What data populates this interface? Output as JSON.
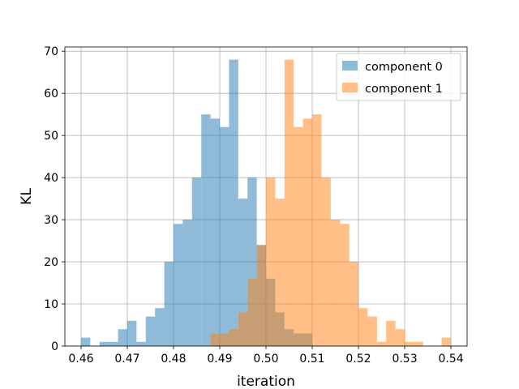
{
  "chart_data": {
    "type": "bar",
    "xlabel": "iteration",
    "ylabel": "KL",
    "xlim": [
      0.4565,
      0.5435
    ],
    "ylim": [
      0,
      71
    ],
    "grid": true,
    "legend": "top-right",
    "x_ticks": [
      "0.46",
      "0.47",
      "0.48",
      "0.49",
      "0.50",
      "0.51",
      "0.52",
      "0.53",
      "0.54"
    ],
    "y_ticks": [
      "0",
      "10",
      "20",
      "30",
      "40",
      "50",
      "60",
      "70"
    ],
    "series": [
      {
        "name": "component 0",
        "color": "#1f77b4",
        "bin_edges": [
          0.46,
          0.462,
          0.464,
          0.466,
          0.468,
          0.47,
          0.472,
          0.474,
          0.476,
          0.478,
          0.48,
          0.482,
          0.484,
          0.486,
          0.488,
          0.49,
          0.492,
          0.494,
          0.496,
          0.498,
          0.5,
          0.502,
          0.504,
          0.506,
          0.508,
          0.51,
          0.512
        ],
        "counts": [
          2,
          0,
          1,
          1,
          4,
          6,
          1,
          7,
          9,
          20,
          29,
          30,
          40,
          55,
          54,
          52,
          68,
          35,
          40,
          24,
          16,
          8,
          4,
          3,
          3,
          0
        ]
      },
      {
        "name": "component 1",
        "color": "#ff7f0e",
        "bin_edges": [
          0.488,
          0.49,
          0.492,
          0.494,
          0.496,
          0.498,
          0.5,
          0.502,
          0.504,
          0.506,
          0.508,
          0.51,
          0.512,
          0.514,
          0.516,
          0.518,
          0.52,
          0.522,
          0.524,
          0.526,
          0.528,
          0.53,
          0.532,
          0.534,
          0.536,
          0.538,
          0.54
        ],
        "counts": [
          3,
          3,
          4,
          8,
          16,
          24,
          40,
          35,
          68,
          52,
          54,
          55,
          40,
          30,
          29,
          20,
          9,
          7,
          1,
          6,
          4,
          1,
          1,
          0,
          0,
          2
        ]
      }
    ]
  }
}
